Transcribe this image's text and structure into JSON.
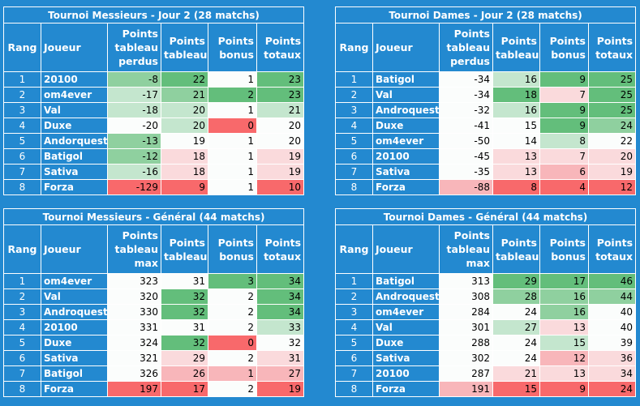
{
  "tables": [
    {
      "title": "Tournoi Messieurs - Jour 2 (28 matchs)",
      "headers": {
        "rank": "Rang",
        "player": "Joueur",
        "c1": "Points tableau perdus",
        "c2": "Points tableau",
        "c3": "Points bonus",
        "c4": "Points totaux"
      },
      "rows": [
        {
          "rank": "1",
          "player": "20100",
          "c1": "-8",
          "c2": "22",
          "c3": "1",
          "c4": "23",
          "s1": "g2",
          "s2": "g3",
          "s3": "w",
          "s4": "g3"
        },
        {
          "rank": "2",
          "player": "om4ever",
          "c1": "-17",
          "c2": "21",
          "c3": "2",
          "c4": "23",
          "s1": "g1",
          "s2": "g2",
          "s3": "g3",
          "s4": "g3"
        },
        {
          "rank": "3",
          "player": "Val",
          "c1": "-18",
          "c2": "20",
          "c3": "1",
          "c4": "21",
          "s1": "g1",
          "s2": "g1",
          "s3": "w",
          "s4": "g1"
        },
        {
          "rank": "4",
          "player": "Duxe",
          "c1": "-20",
          "c2": "20",
          "c3": "0",
          "c4": "20",
          "s1": "w",
          "s2": "g1",
          "s3": "r3",
          "s4": "w"
        },
        {
          "rank": "5",
          "player": "Andorquest",
          "c1": "-13",
          "c2": "19",
          "c3": "1",
          "c4": "20",
          "s1": "g2",
          "s2": "w",
          "s3": "w",
          "s4": "w"
        },
        {
          "rank": "6",
          "player": "Batigol",
          "c1": "-12",
          "c2": "18",
          "c3": "1",
          "c4": "19",
          "s1": "g2",
          "s2": "r1",
          "s3": "w",
          "s4": "r1"
        },
        {
          "rank": "7",
          "player": "Sativa",
          "c1": "-16",
          "c2": "18",
          "c3": "1",
          "c4": "19",
          "s1": "g1",
          "s2": "r1",
          "s3": "w",
          "s4": "r1"
        },
        {
          "rank": "8",
          "player": "Forza",
          "c1": "-129",
          "c2": "9",
          "c3": "1",
          "c4": "10",
          "s1": "r3",
          "s2": "r3",
          "s3": "w",
          "s4": "r3"
        }
      ]
    },
    {
      "title": "Tournoi Dames - Jour 2 (28 matchs)",
      "headers": {
        "rank": "Rang",
        "player": "Joueur",
        "c1": "Points tableau perdus",
        "c2": "Points tableau",
        "c3": "Points bonus",
        "c4": "Points totaux"
      },
      "rows": [
        {
          "rank": "1",
          "player": "Batigol",
          "c1": "-34",
          "c2": "16",
          "c3": "9",
          "c4": "25",
          "s1": "w",
          "s2": "g1",
          "s3": "g3",
          "s4": "g3"
        },
        {
          "rank": "2",
          "player": "Val",
          "c1": "-34",
          "c2": "18",
          "c3": "7",
          "c4": "25",
          "s1": "w",
          "s2": "g3",
          "s3": "r1",
          "s4": "g3"
        },
        {
          "rank": "3",
          "player": "Androquest",
          "c1": "-32",
          "c2": "16",
          "c3": "9",
          "c4": "25",
          "s1": "w",
          "s2": "g1",
          "s3": "g3",
          "s4": "g3"
        },
        {
          "rank": "4",
          "player": "Duxe",
          "c1": "-41",
          "c2": "15",
          "c3": "9",
          "c4": "24",
          "s1": "w",
          "s2": "w",
          "s3": "g3",
          "s4": "g2"
        },
        {
          "rank": "5",
          "player": "om4ever",
          "c1": "-50",
          "c2": "14",
          "c3": "8",
          "c4": "22",
          "s1": "w",
          "s2": "w",
          "s3": "g1",
          "s4": "w"
        },
        {
          "rank": "6",
          "player": "20100",
          "c1": "-45",
          "c2": "13",
          "c3": "7",
          "c4": "20",
          "s1": "w",
          "s2": "r1",
          "s3": "r1",
          "s4": "r1"
        },
        {
          "rank": "7",
          "player": "Sativa",
          "c1": "-35",
          "c2": "13",
          "c3": "6",
          "c4": "19",
          "s1": "w",
          "s2": "r1",
          "s3": "r2",
          "s4": "r1"
        },
        {
          "rank": "8",
          "player": "Forza",
          "c1": "-88",
          "c2": "8",
          "c3": "4",
          "c4": "12",
          "s1": "r2",
          "s2": "r3",
          "s3": "r3",
          "s4": "r3"
        }
      ]
    },
    {
      "title": "Tournoi Messieurs - Général (44 matchs)",
      "headers": {
        "rank": "Rang",
        "player": "Joueur",
        "c1": "Points tableau max",
        "c2": "Points tableau",
        "c3": "Points bonus",
        "c4": "Points totaux"
      },
      "rows": [
        {
          "rank": "1",
          "player": "om4ever",
          "c1": "323",
          "c2": "31",
          "c3": "3",
          "c4": "34",
          "s1": "w",
          "s2": "w",
          "s3": "g3",
          "s4": "g3"
        },
        {
          "rank": "2",
          "player": "Val",
          "c1": "320",
          "c2": "32",
          "c3": "2",
          "c4": "34",
          "s1": "w",
          "s2": "g3",
          "s3": "w",
          "s4": "g3"
        },
        {
          "rank": "3",
          "player": "Androquest",
          "c1": "330",
          "c2": "32",
          "c3": "2",
          "c4": "34",
          "s1": "w",
          "s2": "g3",
          "s3": "w",
          "s4": "g3"
        },
        {
          "rank": "4",
          "player": "20100",
          "c1": "331",
          "c2": "31",
          "c3": "2",
          "c4": "33",
          "s1": "w",
          "s2": "w",
          "s3": "w",
          "s4": "g1"
        },
        {
          "rank": "5",
          "player": "Duxe",
          "c1": "324",
          "c2": "32",
          "c3": "0",
          "c4": "32",
          "s1": "w",
          "s2": "g3",
          "s3": "r3",
          "s4": "w"
        },
        {
          "rank": "6",
          "player": "Sativa",
          "c1": "321",
          "c2": "29",
          "c3": "2",
          "c4": "31",
          "s1": "w",
          "s2": "r1",
          "s3": "w",
          "s4": "r1"
        },
        {
          "rank": "7",
          "player": "Batigol",
          "c1": "326",
          "c2": "26",
          "c3": "1",
          "c4": "27",
          "s1": "w",
          "s2": "r2",
          "s3": "r2",
          "s4": "r2"
        },
        {
          "rank": "8",
          "player": "Forza",
          "c1": "197",
          "c2": "17",
          "c3": "2",
          "c4": "19",
          "s1": "r3",
          "s2": "r3",
          "s3": "w",
          "s4": "r3"
        }
      ]
    },
    {
      "title": "Tournoi Dames - Général (44 matchs)",
      "headers": {
        "rank": "Rang",
        "player": "Joueur",
        "c1": "Points tableau max",
        "c2": "Points tableau",
        "c3": "Points bonus",
        "c4": "Points totaux"
      },
      "rows": [
        {
          "rank": "1",
          "player": "Batigol",
          "c1": "313",
          "c2": "29",
          "c3": "17",
          "c4": "46",
          "s1": "w",
          "s2": "g3",
          "s3": "g3",
          "s4": "g3"
        },
        {
          "rank": "2",
          "player": "Androquest",
          "c1": "308",
          "c2": "28",
          "c3": "16",
          "c4": "44",
          "s1": "w",
          "s2": "g2",
          "s3": "g2",
          "s4": "g2"
        },
        {
          "rank": "3",
          "player": "om4ever",
          "c1": "284",
          "c2": "24",
          "c3": "16",
          "c4": "40",
          "s1": "w",
          "s2": "w",
          "s3": "g2",
          "s4": "w"
        },
        {
          "rank": "4",
          "player": "Val",
          "c1": "301",
          "c2": "27",
          "c3": "13",
          "c4": "40",
          "s1": "w",
          "s2": "g1",
          "s3": "r1",
          "s4": "w"
        },
        {
          "rank": "5",
          "player": "Duxe",
          "c1": "288",
          "c2": "24",
          "c3": "15",
          "c4": "39",
          "s1": "w",
          "s2": "w",
          "s3": "g1",
          "s4": "w"
        },
        {
          "rank": "6",
          "player": "Sativa",
          "c1": "302",
          "c2": "24",
          "c3": "12",
          "c4": "36",
          "s1": "w",
          "s2": "w",
          "s3": "r2",
          "s4": "r1"
        },
        {
          "rank": "7",
          "player": "20100",
          "c1": "287",
          "c2": "21",
          "c3": "13",
          "c4": "34",
          "s1": "w",
          "s2": "r1",
          "s3": "r1",
          "s4": "r1"
        },
        {
          "rank": "8",
          "player": "Forza",
          "c1": "191",
          "c2": "15",
          "c3": "9",
          "c4": "24",
          "s1": "r2",
          "s2": "r3",
          "s3": "r3",
          "s4": "r3"
        }
      ]
    }
  ]
}
